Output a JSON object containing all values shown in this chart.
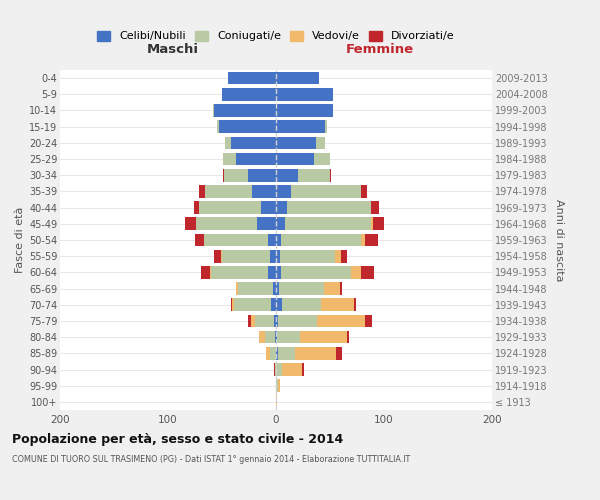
{
  "age_groups": [
    "100+",
    "95-99",
    "90-94",
    "85-89",
    "80-84",
    "75-79",
    "70-74",
    "65-69",
    "60-64",
    "55-59",
    "50-54",
    "45-49",
    "40-44",
    "35-39",
    "30-34",
    "25-29",
    "20-24",
    "15-19",
    "10-14",
    "5-9",
    "0-4"
  ],
  "birth_years": [
    "≤ 1913",
    "1914-1918",
    "1919-1923",
    "1924-1928",
    "1929-1933",
    "1934-1938",
    "1939-1943",
    "1944-1948",
    "1949-1953",
    "1954-1958",
    "1959-1963",
    "1964-1968",
    "1969-1973",
    "1974-1978",
    "1979-1983",
    "1984-1988",
    "1989-1993",
    "1994-1998",
    "1999-2003",
    "2004-2008",
    "2009-2013"
  ],
  "colors": {
    "celibi": "#4472c4",
    "coniugati": "#b8c9a3",
    "vedovi": "#f0b96b",
    "divorziati": "#c0272d"
  },
  "maschi": {
    "celibi": [
      0,
      0,
      0,
      0,
      1,
      2,
      5,
      3,
      7,
      6,
      7,
      18,
      14,
      22,
      26,
      37,
      42,
      53,
      57,
      50,
      44
    ],
    "coniugati": [
      0,
      0,
      1,
      6,
      9,
      17,
      34,
      32,
      53,
      44,
      60,
      56,
      57,
      44,
      22,
      12,
      5,
      2,
      1,
      0,
      0
    ],
    "vedovi": [
      0,
      0,
      0,
      3,
      6,
      4,
      2,
      2,
      1,
      1,
      0,
      0,
      0,
      0,
      0,
      0,
      0,
      0,
      0,
      0,
      0
    ],
    "divorziati": [
      0,
      0,
      1,
      0,
      0,
      3,
      1,
      0,
      8,
      6,
      8,
      10,
      5,
      5,
      1,
      0,
      0,
      0,
      0,
      0,
      0
    ]
  },
  "femmine": {
    "celibi": [
      0,
      0,
      0,
      2,
      1,
      2,
      6,
      3,
      5,
      4,
      5,
      8,
      10,
      14,
      20,
      35,
      37,
      45,
      53,
      53,
      40
    ],
    "coniugati": [
      0,
      2,
      6,
      16,
      21,
      36,
      36,
      41,
      64,
      51,
      74,
      80,
      78,
      65,
      30,
      15,
      8,
      2,
      0,
      0,
      0
    ],
    "vedovi": [
      1,
      2,
      18,
      38,
      44,
      44,
      30,
      15,
      10,
      5,
      3,
      2,
      0,
      0,
      0,
      0,
      0,
      0,
      0,
      0,
      0
    ],
    "divorziati": [
      0,
      0,
      2,
      5,
      2,
      7,
      2,
      2,
      12,
      6,
      12,
      10,
      7,
      5,
      1,
      0,
      0,
      0,
      0,
      0,
      0
    ]
  },
  "xlim": 200,
  "title": "Popolazione per età, sesso e stato civile - 2014",
  "subtitle": "COMUNE DI TUORO SUL TRASIMENO (PG) - Dati ISTAT 1° gennaio 2014 - Elaborazione TUTTITALIA.IT",
  "ylabel_left": "Fasce di età",
  "ylabel_right": "Anni di nascita",
  "xlabel_maschi": "Maschi",
  "xlabel_femmine": "Femmine",
  "bg_color": "#f0f0f0",
  "plot_bg": "#ffffff",
  "legend_labels": [
    "Celibi/Nubili",
    "Coniugati/e",
    "Vedovi/e",
    "Divorziati/e"
  ]
}
